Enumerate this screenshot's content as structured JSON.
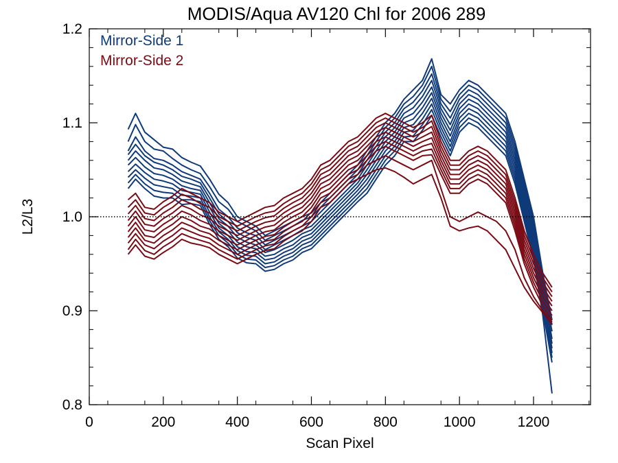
{
  "chart_data": {
    "type": "line",
    "title": "MODIS/Aqua AV120 Chl for 2006 289",
    "xlabel": "Scan Pixel",
    "ylabel": "L2/L3",
    "xlim": [
      0,
      1354
    ],
    "ylim": [
      0.8,
      1.2
    ],
    "xticks": [
      0,
      200,
      400,
      600,
      800,
      1000,
      1200
    ],
    "xtick_labels": [
      "0",
      "200",
      "400",
      "600",
      "800",
      "1000",
      "1200"
    ],
    "yticks": [
      0.8,
      0.9,
      1.0,
      1.1,
      1.2
    ],
    "ytick_labels": [
      "0.8",
      "0.9",
      "1.0",
      "1.1",
      "1.2"
    ],
    "reference_line": {
      "y": 1.0,
      "style": "dotted"
    },
    "legend_placement": "top-left",
    "x": [
      105,
      125,
      150,
      175,
      200,
      225,
      250,
      275,
      300,
      325,
      350,
      375,
      400,
      425,
      450,
      475,
      500,
      525,
      550,
      575,
      600,
      625,
      650,
      675,
      700,
      725,
      750,
      775,
      800,
      825,
      850,
      875,
      900,
      925,
      950,
      975,
      1000,
      1025,
      1050,
      1075,
      1100,
      1125,
      1150,
      1175,
      1200,
      1225,
      1250
    ],
    "series": [
      {
        "name": "Mirror-Side 1",
        "color": "#0e3a7a",
        "lines": [
          [
            1.093,
            1.11,
            1.09,
            1.082,
            1.074,
            1.072,
            1.063,
            1.058,
            1.054,
            1.04,
            1.024,
            1.015,
            1.0,
            0.995,
            0.99,
            0.98,
            0.985,
            0.99,
            0.995,
            1.0,
            1.004,
            1.015,
            1.025,
            1.035,
            1.045,
            1.055,
            1.07,
            1.085,
            1.1,
            1.11,
            1.125,
            1.135,
            1.145,
            1.168,
            1.13,
            1.12,
            1.135,
            1.145,
            1.14,
            1.13,
            1.12,
            1.11,
            1.08,
            1.04,
            1.0,
            0.94,
            0.89
          ],
          [
            1.08,
            1.098,
            1.08,
            1.072,
            1.07,
            1.062,
            1.055,
            1.05,
            1.046,
            1.032,
            1.016,
            1.008,
            0.995,
            0.99,
            0.985,
            0.975,
            0.98,
            0.985,
            0.99,
            0.996,
            1.0,
            1.01,
            1.02,
            1.03,
            1.04,
            1.05,
            1.065,
            1.08,
            1.095,
            1.105,
            1.12,
            1.128,
            1.14,
            1.16,
            1.125,
            1.112,
            1.13,
            1.14,
            1.135,
            1.125,
            1.115,
            1.105,
            1.075,
            1.035,
            0.995,
            0.935,
            0.885
          ],
          [
            1.07,
            1.085,
            1.07,
            1.062,
            1.06,
            1.055,
            1.048,
            1.044,
            1.04,
            1.025,
            1.008,
            1.0,
            0.988,
            0.983,
            0.98,
            0.97,
            0.975,
            0.98,
            0.985,
            0.99,
            0.995,
            1.005,
            1.015,
            1.025,
            1.035,
            1.045,
            1.06,
            1.075,
            1.09,
            1.1,
            1.115,
            1.122,
            1.134,
            1.152,
            1.12,
            1.105,
            1.125,
            1.135,
            1.13,
            1.12,
            1.11,
            1.1,
            1.07,
            1.03,
            0.99,
            0.93,
            0.878
          ],
          [
            1.066,
            1.077,
            1.065,
            1.058,
            1.055,
            1.05,
            1.043,
            1.04,
            1.036,
            1.02,
            1.003,
            0.995,
            0.983,
            0.978,
            0.975,
            0.965,
            0.97,
            0.975,
            0.98,
            0.986,
            0.99,
            1.0,
            1.01,
            1.02,
            1.03,
            1.04,
            1.055,
            1.07,
            1.085,
            1.095,
            1.11,
            1.116,
            1.128,
            1.145,
            1.115,
            1.098,
            1.12,
            1.13,
            1.125,
            1.115,
            1.105,
            1.095,
            1.065,
            1.025,
            0.985,
            0.925,
            0.87
          ],
          [
            1.06,
            1.07,
            1.06,
            1.052,
            1.05,
            1.045,
            1.038,
            1.035,
            1.032,
            1.015,
            0.998,
            0.99,
            0.978,
            0.973,
            0.97,
            0.962,
            0.965,
            0.97,
            0.975,
            0.982,
            0.986,
            0.996,
            1.006,
            1.016,
            1.026,
            1.036,
            1.05,
            1.065,
            1.08,
            1.09,
            1.105,
            1.11,
            1.122,
            1.138,
            1.11,
            1.092,
            1.115,
            1.125,
            1.12,
            1.11,
            1.1,
            1.09,
            1.06,
            1.02,
            0.98,
            0.92,
            0.865
          ],
          [
            1.055,
            1.063,
            1.053,
            1.046,
            1.044,
            1.04,
            1.033,
            1.03,
            1.028,
            1.01,
            0.993,
            0.985,
            0.973,
            0.968,
            0.966,
            0.958,
            0.96,
            0.966,
            0.97,
            0.978,
            0.982,
            0.992,
            1.002,
            1.012,
            1.022,
            1.032,
            1.045,
            1.06,
            1.075,
            1.085,
            1.1,
            1.104,
            1.116,
            1.132,
            1.105,
            1.086,
            1.11,
            1.12,
            1.115,
            1.105,
            1.095,
            1.085,
            1.055,
            1.015,
            0.975,
            0.915,
            0.86
          ],
          [
            1.048,
            1.056,
            1.047,
            1.04,
            1.038,
            1.035,
            1.028,
            1.026,
            1.024,
            1.005,
            0.988,
            0.98,
            0.968,
            0.963,
            0.962,
            0.954,
            0.956,
            0.962,
            0.966,
            0.974,
            0.978,
            0.988,
            0.998,
            1.008,
            1.018,
            1.028,
            1.04,
            1.055,
            1.07,
            1.08,
            1.095,
            1.098,
            1.11,
            1.126,
            1.1,
            1.08,
            1.105,
            1.115,
            1.11,
            1.1,
            1.09,
            1.08,
            1.05,
            1.01,
            0.97,
            0.91,
            0.855
          ],
          [
            1.042,
            1.05,
            1.041,
            1.034,
            1.032,
            1.03,
            1.023,
            1.022,
            1.02,
            1.0,
            0.984,
            0.976,
            0.964,
            0.959,
            0.958,
            0.95,
            0.952,
            0.958,
            0.962,
            0.97,
            0.974,
            0.984,
            0.994,
            1.004,
            1.014,
            1.024,
            1.035,
            1.05,
            1.065,
            1.075,
            1.09,
            1.092,
            1.104,
            1.12,
            1.095,
            1.075,
            1.1,
            1.11,
            1.105,
            1.095,
            1.085,
            1.075,
            1.045,
            1.005,
            0.965,
            0.905,
            0.85
          ],
          [
            1.036,
            1.045,
            1.035,
            1.028,
            1.026,
            1.025,
            1.018,
            1.018,
            1.016,
            0.996,
            0.98,
            0.972,
            0.96,
            0.955,
            0.954,
            0.946,
            0.948,
            0.954,
            0.958,
            0.966,
            0.97,
            0.98,
            0.99,
            1.0,
            1.01,
            1.02,
            1.03,
            1.045,
            1.06,
            1.07,
            1.085,
            1.086,
            1.098,
            1.114,
            1.09,
            1.07,
            1.095,
            1.105,
            1.1,
            1.09,
            1.08,
            1.07,
            1.04,
            1.0,
            0.96,
            0.9,
            0.845
          ],
          [
            1.03,
            1.04,
            1.03,
            1.022,
            1.02,
            1.02,
            1.013,
            1.014,
            1.012,
            0.992,
            0.976,
            0.968,
            0.956,
            0.951,
            0.95,
            0.942,
            0.944,
            0.95,
            0.954,
            0.962,
            0.966,
            0.976,
            0.986,
            0.996,
            1.006,
            1.016,
            1.025,
            1.04,
            1.055,
            1.065,
            1.08,
            1.08,
            1.092,
            1.108,
            1.085,
            1.065,
            1.09,
            1.1,
            1.095,
            1.085,
            1.075,
            1.065,
            1.035,
            0.995,
            0.955,
            0.895,
            0.812
          ]
        ]
      },
      {
        "name": "Mirror-Side 2",
        "color": "#7a0a14",
        "lines": [
          [
            1.018,
            1.025,
            1.01,
            1.008,
            1.016,
            1.022,
            1.03,
            1.025,
            1.02,
            1.015,
            1.005,
            1.0,
            0.995,
            1.0,
            1.005,
            1.01,
            1.012,
            1.02,
            1.025,
            1.03,
            1.04,
            1.055,
            1.06,
            1.07,
            1.08,
            1.085,
            1.095,
            1.105,
            1.11,
            1.105,
            1.1,
            1.095,
            1.1,
            1.108,
            1.08,
            1.06,
            1.06,
            1.07,
            1.075,
            1.07,
            1.06,
            1.05,
            1.02,
            0.985,
            0.96,
            0.94,
            0.925
          ],
          [
            1.01,
            1.018,
            1.004,
            1.002,
            1.01,
            1.016,
            1.024,
            1.02,
            1.014,
            1.01,
            1.0,
            0.995,
            0.99,
            0.995,
            1.0,
            1.004,
            1.006,
            1.014,
            1.02,
            1.025,
            1.035,
            1.05,
            1.055,
            1.065,
            1.075,
            1.08,
            1.09,
            1.1,
            1.105,
            1.1,
            1.095,
            1.09,
            1.095,
            1.102,
            1.075,
            1.055,
            1.055,
            1.065,
            1.07,
            1.065,
            1.055,
            1.045,
            1.015,
            0.98,
            0.955,
            0.935,
            0.92
          ],
          [
            1.003,
            1.012,
            0.998,
            0.996,
            1.004,
            1.01,
            1.018,
            1.014,
            1.008,
            1.004,
            0.995,
            0.99,
            0.985,
            0.99,
            0.995,
            0.999,
            1.001,
            1.009,
            1.015,
            1.02,
            1.03,
            1.045,
            1.05,
            1.06,
            1.07,
            1.075,
            1.085,
            1.095,
            1.1,
            1.095,
            1.09,
            1.085,
            1.09,
            1.096,
            1.07,
            1.05,
            1.05,
            1.06,
            1.065,
            1.06,
            1.05,
            1.04,
            1.01,
            0.975,
            0.95,
            0.93,
            0.915
          ],
          [
            0.996,
            1.006,
            0.992,
            0.99,
            0.998,
            1.004,
            1.012,
            1.008,
            1.002,
            0.998,
            0.99,
            0.985,
            0.98,
            0.985,
            0.99,
            0.994,
            0.996,
            1.004,
            1.01,
            1.015,
            1.025,
            1.04,
            1.045,
            1.055,
            1.065,
            1.07,
            1.08,
            1.09,
            1.095,
            1.09,
            1.085,
            1.08,
            1.085,
            1.09,
            1.065,
            1.045,
            1.045,
            1.055,
            1.06,
            1.055,
            1.045,
            1.035,
            1.005,
            0.97,
            0.945,
            0.925,
            0.91
          ],
          [
            0.99,
            1.0,
            0.986,
            0.984,
            0.992,
            0.998,
            1.006,
            1.002,
            0.996,
            0.992,
            0.985,
            0.98,
            0.975,
            0.98,
            0.985,
            0.989,
            0.991,
            0.999,
            1.005,
            1.01,
            1.02,
            1.035,
            1.04,
            1.05,
            1.06,
            1.065,
            1.075,
            1.085,
            1.09,
            1.085,
            1.08,
            1.075,
            1.08,
            1.084,
            1.06,
            1.04,
            1.04,
            1.05,
            1.055,
            1.05,
            1.04,
            1.03,
            1.0,
            0.965,
            0.94,
            0.92,
            0.905
          ],
          [
            0.984,
            0.994,
            0.98,
            0.978,
            0.986,
            0.992,
            1.0,
            0.996,
            0.99,
            0.987,
            0.98,
            0.975,
            0.97,
            0.975,
            0.98,
            0.984,
            0.986,
            0.994,
            1.0,
            1.005,
            1.015,
            1.03,
            1.035,
            1.045,
            1.055,
            1.06,
            1.07,
            1.08,
            1.085,
            1.08,
            1.075,
            1.07,
            1.075,
            1.078,
            1.055,
            1.035,
            1.035,
            1.045,
            1.05,
            1.045,
            1.035,
            1.025,
            0.995,
            0.96,
            0.935,
            0.915,
            0.9
          ],
          [
            0.978,
            0.988,
            0.975,
            0.972,
            0.98,
            0.986,
            0.994,
            0.99,
            0.985,
            0.982,
            0.975,
            0.97,
            0.965,
            0.97,
            0.975,
            0.979,
            0.981,
            0.989,
            0.995,
            1.0,
            1.01,
            1.025,
            1.03,
            1.04,
            1.05,
            1.055,
            1.065,
            1.075,
            1.08,
            1.075,
            1.07,
            1.065,
            1.07,
            1.072,
            1.05,
            1.03,
            1.03,
            1.04,
            1.045,
            1.04,
            1.03,
            1.02,
            0.99,
            0.955,
            0.93,
            0.91,
            0.895
          ],
          [
            0.972,
            0.982,
            0.97,
            0.966,
            0.974,
            0.98,
            0.988,
            0.984,
            0.98,
            0.977,
            0.97,
            0.965,
            0.96,
            0.965,
            0.97,
            0.974,
            0.976,
            0.984,
            0.99,
            0.995,
            1.005,
            1.02,
            1.025,
            1.035,
            1.045,
            1.05,
            1.06,
            1.07,
            1.075,
            1.07,
            1.065,
            1.06,
            1.065,
            1.066,
            1.045,
            1.025,
            1.025,
            1.035,
            1.04,
            1.035,
            1.025,
            1.015,
            0.985,
            0.95,
            0.925,
            0.905,
            0.89
          ],
          [
            0.965,
            0.976,
            0.964,
            0.96,
            0.968,
            0.974,
            0.982,
            0.978,
            0.975,
            0.972,
            0.965,
            0.96,
            0.955,
            0.96,
            0.965,
            0.969,
            0.971,
            0.979,
            0.985,
            0.99,
            1.0,
            1.015,
            1.02,
            1.03,
            1.04,
            1.045,
            1.055,
            1.06,
            1.065,
            1.06,
            1.055,
            1.05,
            1.055,
            1.06,
            1.03,
            1.0,
            0.995,
            1.0,
            1.005,
            1.0,
            0.995,
            0.985,
            0.965,
            0.935,
            0.915,
            0.9,
            0.888
          ],
          [
            0.96,
            0.97,
            0.958,
            0.955,
            0.962,
            0.968,
            0.976,
            0.972,
            0.97,
            0.967,
            0.96,
            0.955,
            0.95,
            0.955,
            0.96,
            0.964,
            0.966,
            0.974,
            0.98,
            0.985,
            0.995,
            1.01,
            1.015,
            1.025,
            1.035,
            1.04,
            1.045,
            1.05,
            1.052,
            1.048,
            1.042,
            1.035,
            1.04,
            1.045,
            1.02,
            0.99,
            0.985,
            0.988,
            0.99,
            0.985,
            0.975,
            0.965,
            0.945,
            0.925,
            0.91,
            0.898,
            0.885
          ]
        ]
      }
    ]
  }
}
